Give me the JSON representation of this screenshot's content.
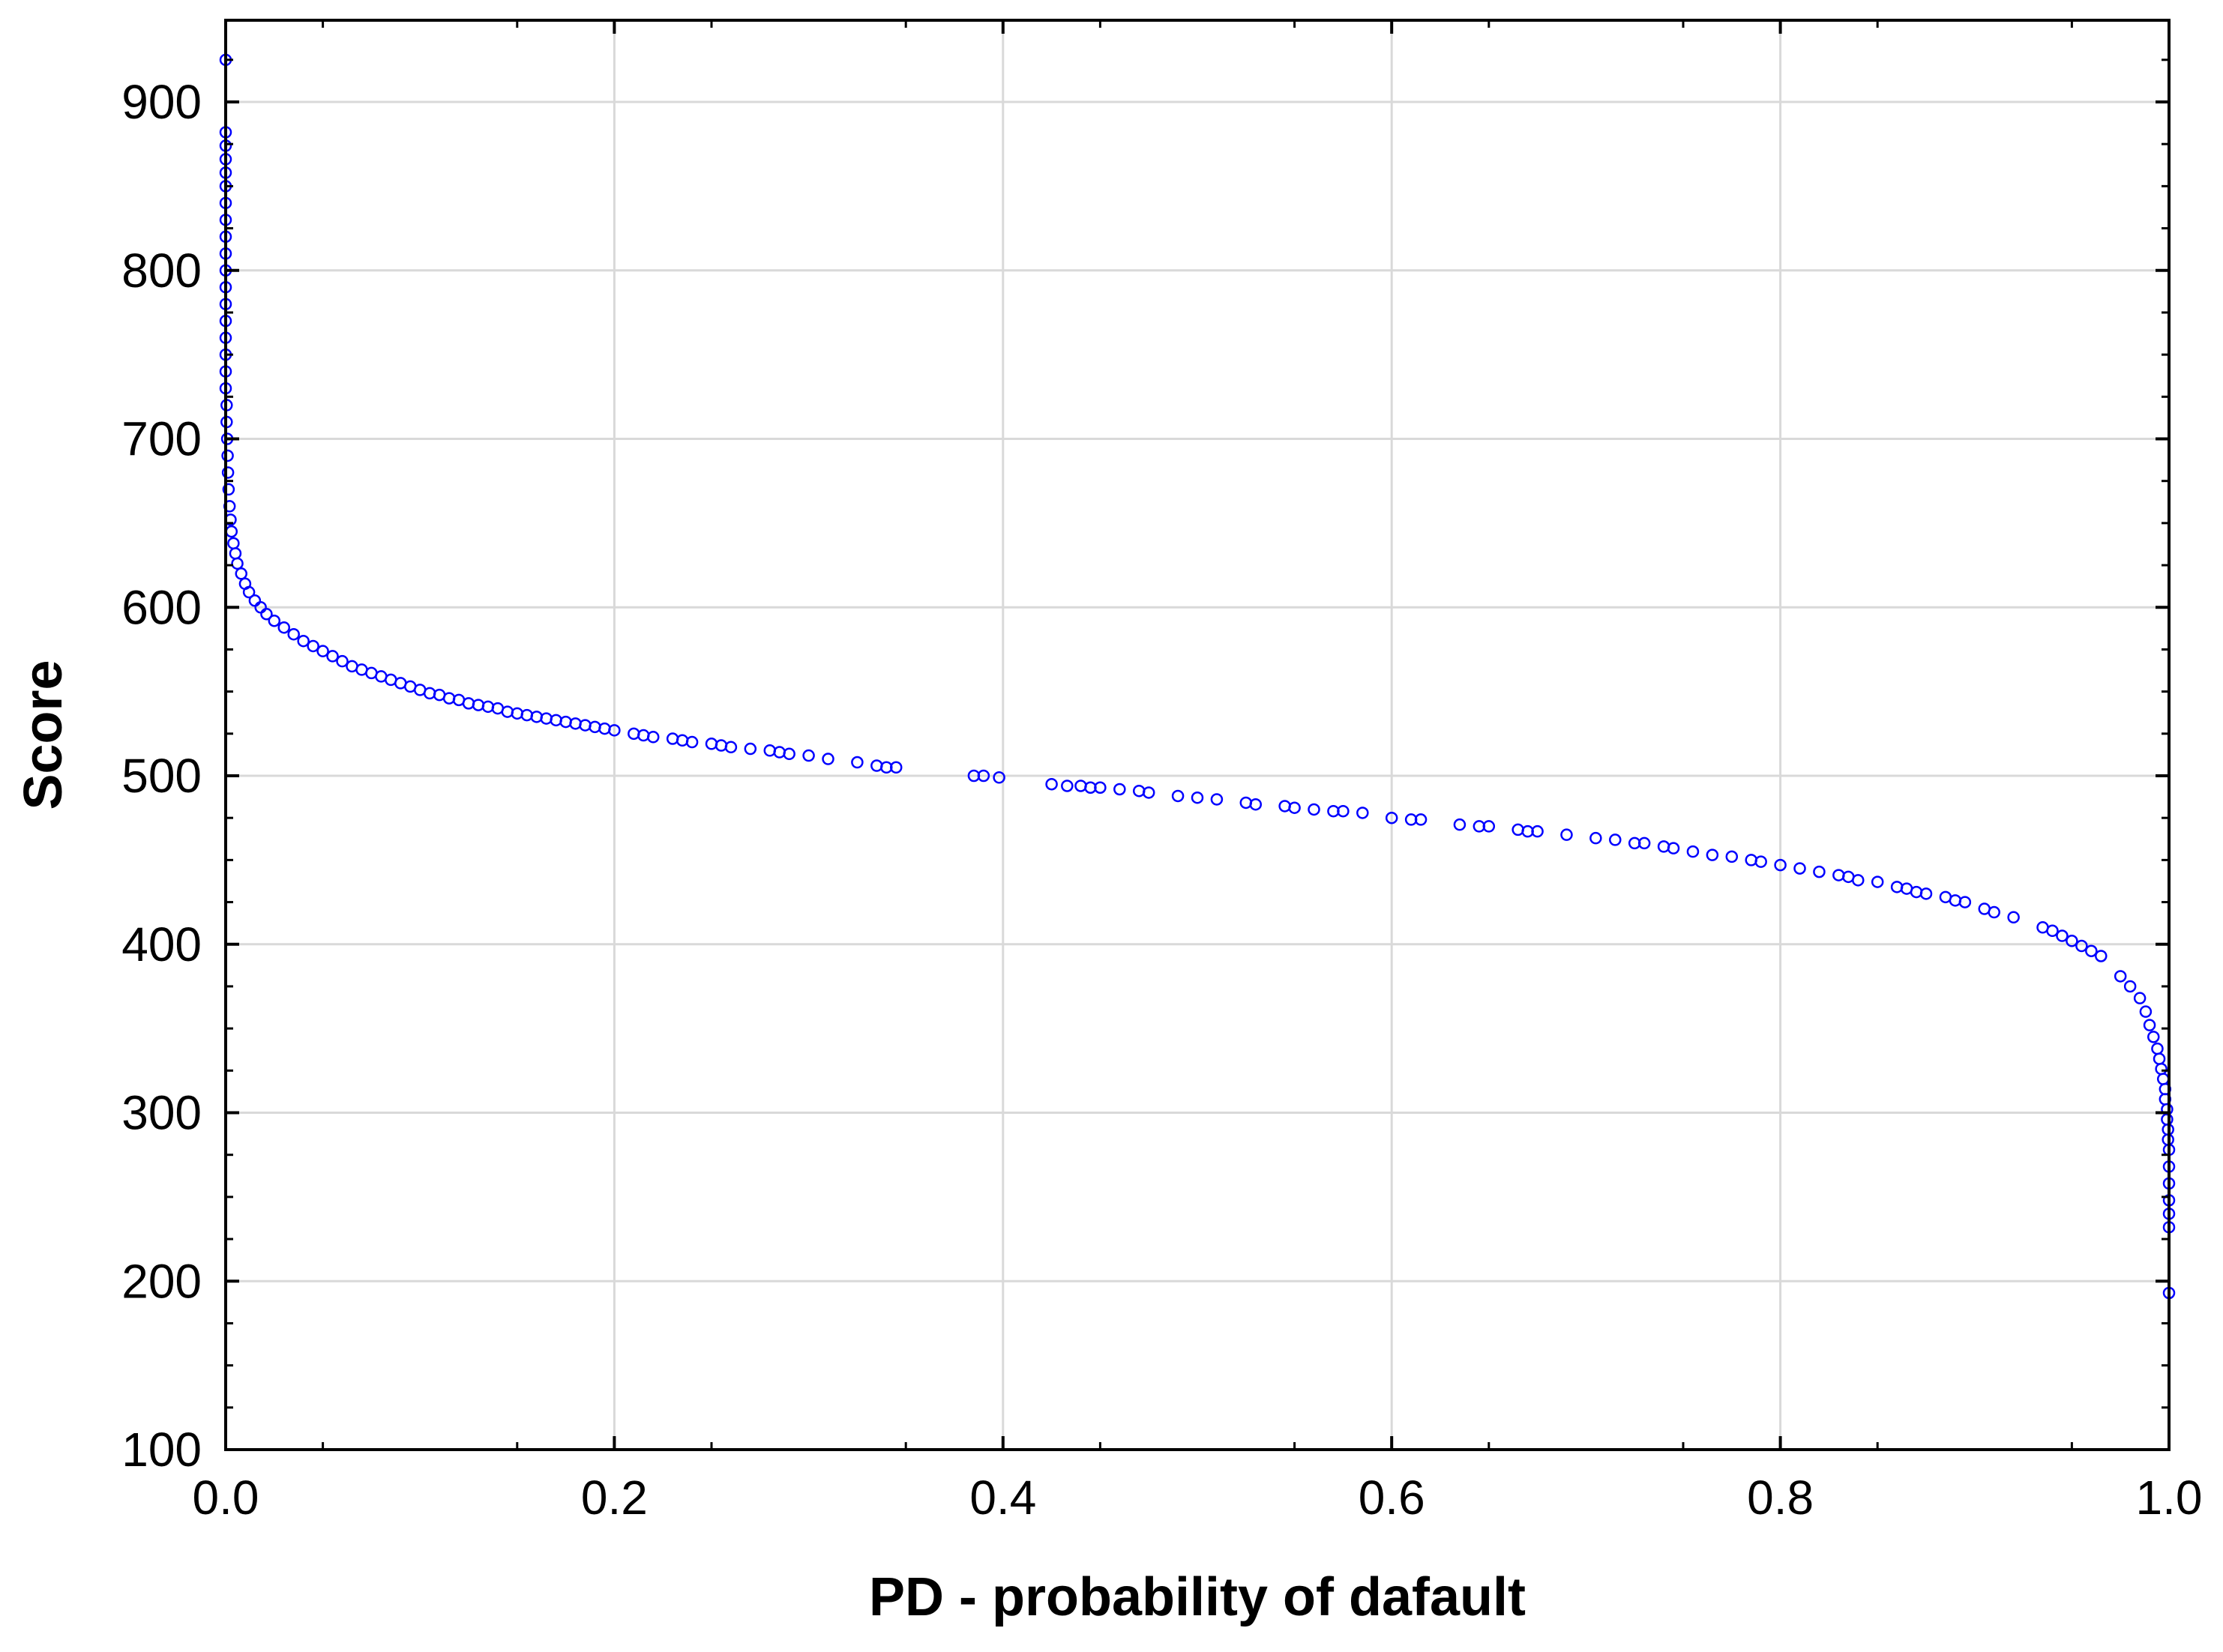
{
  "chart_data": {
    "type": "scatter",
    "title": "",
    "xlabel": "PD - probability of dafault",
    "ylabel": "Score",
    "xlim": [
      0.0,
      1.0
    ],
    "ylim": [
      100,
      950
    ],
    "x_ticks": [
      0.0,
      0.2,
      0.4,
      0.6,
      0.8,
      1.0
    ],
    "x_tick_labels": [
      "0.0",
      "0.2",
      "0.4",
      "0.6",
      "0.8",
      "1.0"
    ],
    "y_ticks": [
      100,
      200,
      300,
      400,
      500,
      600,
      700,
      800,
      900
    ],
    "y_tick_labels": [
      "100",
      "200",
      "300",
      "400",
      "500",
      "600",
      "700",
      "800",
      "900"
    ],
    "grid": true,
    "marker": "open-circle",
    "colors": {
      "marker": "#0000ff",
      "grid": "#d9d9d9",
      "axis": "#000000"
    },
    "series": [
      {
        "points": [
          [
            0.0,
            925
          ],
          [
            0.0,
            882
          ],
          [
            0.0,
            874
          ],
          [
            0.0,
            866
          ],
          [
            0.0,
            858
          ],
          [
            0.0,
            850
          ],
          [
            0.0,
            840
          ],
          [
            0.0,
            830
          ],
          [
            0.0,
            820
          ],
          [
            0.0,
            810
          ],
          [
            0.0,
            800
          ],
          [
            0.0,
            790
          ],
          [
            0.0,
            780
          ],
          [
            0.0,
            770
          ],
          [
            0.0,
            760
          ],
          [
            0.0,
            750
          ],
          [
            0.0,
            740
          ],
          [
            0.0,
            730
          ],
          [
            0.0005,
            720
          ],
          [
            0.0005,
            710
          ],
          [
            0.0008,
            700
          ],
          [
            0.001,
            690
          ],
          [
            0.0012,
            680
          ],
          [
            0.0015,
            670
          ],
          [
            0.002,
            660
          ],
          [
            0.0025,
            652
          ],
          [
            0.003,
            645
          ],
          [
            0.004,
            638
          ],
          [
            0.005,
            632
          ],
          [
            0.006,
            626
          ],
          [
            0.008,
            620
          ],
          [
            0.01,
            614
          ],
          [
            0.012,
            609
          ],
          [
            0.015,
            604
          ],
          [
            0.018,
            600
          ],
          [
            0.021,
            596
          ],
          [
            0.025,
            592
          ],
          [
            0.03,
            588
          ],
          [
            0.035,
            584
          ],
          [
            0.04,
            580
          ],
          [
            0.045,
            577
          ],
          [
            0.05,
            574
          ],
          [
            0.055,
            571
          ],
          [
            0.06,
            568
          ],
          [
            0.065,
            565
          ],
          [
            0.07,
            563
          ],
          [
            0.075,
            561
          ],
          [
            0.08,
            559
          ],
          [
            0.085,
            557
          ],
          [
            0.09,
            555
          ],
          [
            0.095,
            553
          ],
          [
            0.1,
            551
          ],
          [
            0.105,
            549
          ],
          [
            0.11,
            548
          ],
          [
            0.115,
            546
          ],
          [
            0.12,
            545
          ],
          [
            0.125,
            543
          ],
          [
            0.13,
            542
          ],
          [
            0.135,
            541
          ],
          [
            0.14,
            540
          ],
          [
            0.145,
            538
          ],
          [
            0.15,
            537
          ],
          [
            0.155,
            536
          ],
          [
            0.16,
            535
          ],
          [
            0.165,
            534
          ],
          [
            0.17,
            533
          ],
          [
            0.175,
            532
          ],
          [
            0.18,
            531
          ],
          [
            0.185,
            530
          ],
          [
            0.19,
            529
          ],
          [
            0.195,
            528
          ],
          [
            0.2,
            527
          ],
          [
            0.21,
            525
          ],
          [
            0.215,
            524
          ],
          [
            0.22,
            523
          ],
          [
            0.23,
            522
          ],
          [
            0.235,
            521
          ],
          [
            0.24,
            520
          ],
          [
            0.25,
            519
          ],
          [
            0.255,
            518
          ],
          [
            0.26,
            517
          ],
          [
            0.27,
            516
          ],
          [
            0.28,
            515
          ],
          [
            0.285,
            514
          ],
          [
            0.29,
            513
          ],
          [
            0.3,
            512
          ],
          [
            0.31,
            510
          ],
          [
            0.325,
            508
          ],
          [
            0.335,
            506
          ],
          [
            0.34,
            505
          ],
          [
            0.345,
            505
          ],
          [
            0.385,
            500
          ],
          [
            0.39,
            500
          ],
          [
            0.398,
            499
          ],
          [
            0.425,
            495
          ],
          [
            0.433,
            494
          ],
          [
            0.44,
            494
          ],
          [
            0.445,
            493
          ],
          [
            0.45,
            493
          ],
          [
            0.46,
            492
          ],
          [
            0.47,
            491
          ],
          [
            0.475,
            490
          ],
          [
            0.49,
            488
          ],
          [
            0.5,
            487
          ],
          [
            0.51,
            486
          ],
          [
            0.525,
            484
          ],
          [
            0.53,
            483
          ],
          [
            0.545,
            482
          ],
          [
            0.55,
            481
          ],
          [
            0.56,
            480
          ],
          [
            0.57,
            479
          ],
          [
            0.575,
            479
          ],
          [
            0.585,
            478
          ],
          [
            0.6,
            475
          ],
          [
            0.61,
            474
          ],
          [
            0.615,
            474
          ],
          [
            0.635,
            471
          ],
          [
            0.645,
            470
          ],
          [
            0.65,
            470
          ],
          [
            0.665,
            468
          ],
          [
            0.67,
            467
          ],
          [
            0.675,
            467
          ],
          [
            0.69,
            465
          ],
          [
            0.705,
            463
          ],
          [
            0.715,
            462
          ],
          [
            0.725,
            460
          ],
          [
            0.73,
            460
          ],
          [
            0.74,
            458
          ],
          [
            0.745,
            457
          ],
          [
            0.755,
            455
          ],
          [
            0.765,
            453
          ],
          [
            0.775,
            452
          ],
          [
            0.785,
            450
          ],
          [
            0.79,
            449
          ],
          [
            0.8,
            447
          ],
          [
            0.81,
            445
          ],
          [
            0.82,
            443
          ],
          [
            0.83,
            441
          ],
          [
            0.835,
            440
          ],
          [
            0.84,
            438
          ],
          [
            0.85,
            437
          ],
          [
            0.86,
            434
          ],
          [
            0.865,
            433
          ],
          [
            0.87,
            431
          ],
          [
            0.875,
            430
          ],
          [
            0.885,
            428
          ],
          [
            0.89,
            426
          ],
          [
            0.895,
            425
          ],
          [
            0.905,
            421
          ],
          [
            0.91,
            419
          ],
          [
            0.92,
            416
          ],
          [
            0.935,
            410
          ],
          [
            0.94,
            408
          ],
          [
            0.945,
            405
          ],
          [
            0.95,
            402
          ],
          [
            0.955,
            399
          ],
          [
            0.96,
            396
          ],
          [
            0.965,
            393
          ],
          [
            0.975,
            381
          ],
          [
            0.98,
            375
          ],
          [
            0.985,
            368
          ],
          [
            0.988,
            360
          ],
          [
            0.99,
            352
          ],
          [
            0.992,
            345
          ],
          [
            0.994,
            338
          ],
          [
            0.995,
            332
          ],
          [
            0.996,
            326
          ],
          [
            0.997,
            320
          ],
          [
            0.998,
            314
          ],
          [
            0.998,
            308
          ],
          [
            0.999,
            302
          ],
          [
            0.999,
            296
          ],
          [
            0.9995,
            290
          ],
          [
            0.9995,
            284
          ],
          [
            1.0,
            278
          ],
          [
            1.0,
            268
          ],
          [
            1.0,
            258
          ],
          [
            1.0,
            248
          ],
          [
            1.0,
            240
          ],
          [
            1.0,
            232
          ],
          [
            1.0,
            193
          ]
        ]
      }
    ]
  }
}
